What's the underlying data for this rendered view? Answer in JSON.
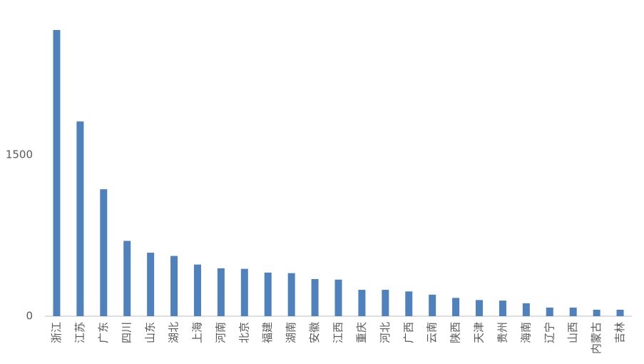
{
  "chart_data": {
    "type": "bar",
    "categories": [
      "浙江",
      "江苏",
      "广东",
      "四川",
      "山东",
      "湖北",
      "上海",
      "河南",
      "北京",
      "福建",
      "湖南",
      "安徽",
      "江西",
      "重庆",
      "河北",
      "广西",
      "云南",
      "陕西",
      "天津",
      "贵州",
      "海南",
      "辽宁",
      "山西",
      "内蒙古",
      "吉林"
    ],
    "values": [
      2660,
      1810,
      1180,
      700,
      590,
      560,
      480,
      445,
      440,
      405,
      400,
      345,
      340,
      245,
      245,
      230,
      200,
      170,
      150,
      145,
      120,
      80,
      80,
      60,
      60
    ],
    "color": "#4f81bd",
    "ylim": [
      0,
      2700
    ],
    "yticks": [
      0,
      1500
    ],
    "grid": false
  }
}
